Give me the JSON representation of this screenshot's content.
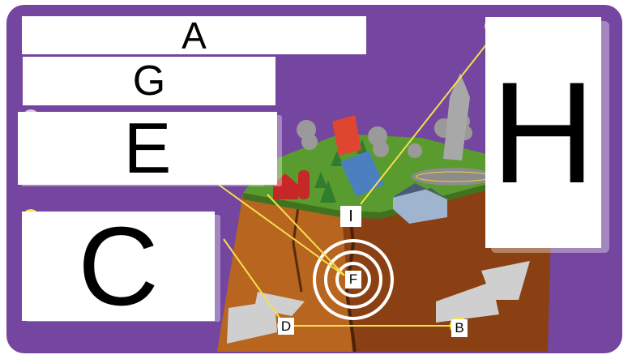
{
  "labels": {
    "a": "A",
    "g": "G",
    "e": "E",
    "c": "C",
    "h": "H",
    "i": "I",
    "f": "F",
    "d": "D",
    "b": "B"
  },
  "colors": {
    "background": "#7446a0",
    "leader_line": "#f4e04d",
    "ground_top": "#4c8a2a",
    "cliff": "#a4561d"
  }
}
